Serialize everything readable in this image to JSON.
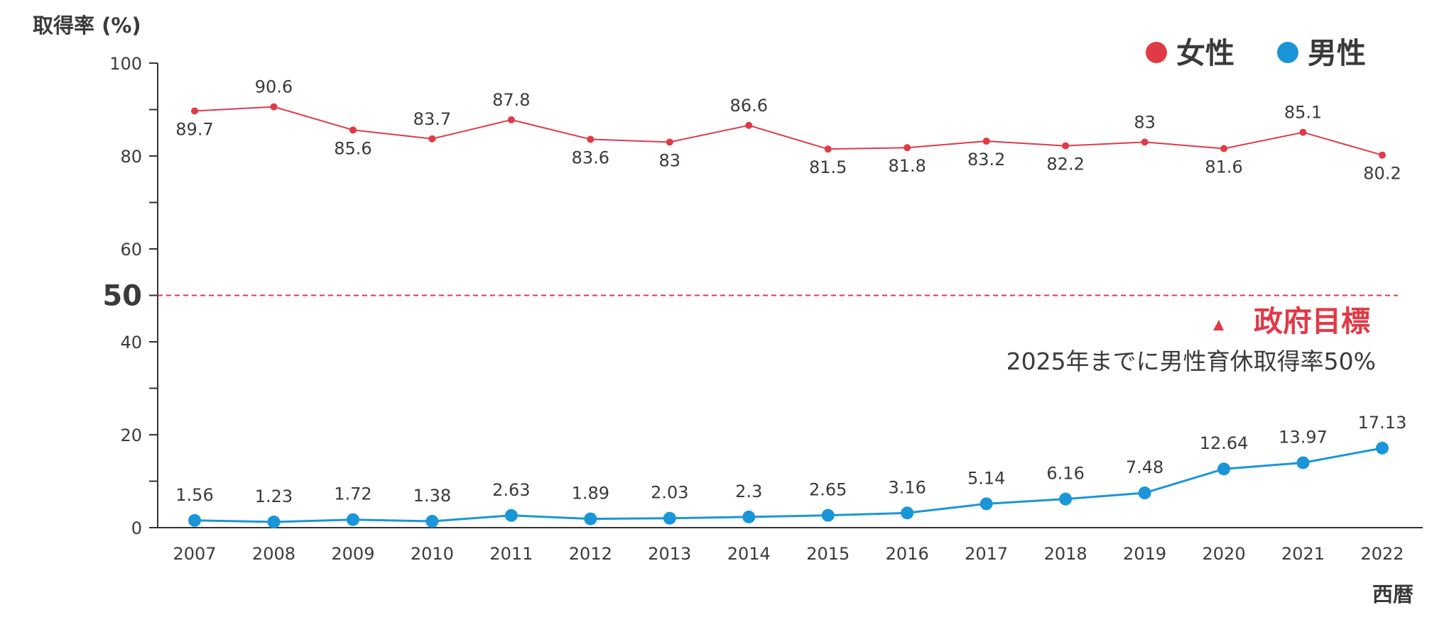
{
  "chart_data": {
    "type": "line",
    "ylabel": "取得率 (%)",
    "xlabel": "西暦",
    "ylim": [
      0,
      100
    ],
    "yticks": [
      0,
      20,
      40,
      60,
      80,
      100
    ],
    "minor_yticks": [
      10,
      30,
      50,
      70,
      90
    ],
    "grid": false,
    "legend_position": "top-right",
    "x": [
      "2007",
      "2008",
      "2009",
      "2010",
      "2011",
      "2012",
      "2013",
      "2014",
      "2015",
      "2016",
      "2017",
      "2018",
      "2019",
      "2020",
      "2021",
      "2022"
    ],
    "series": [
      {
        "name": "女性",
        "color": "#e03a47",
        "values": [
          89.7,
          90.6,
          85.6,
          83.7,
          87.8,
          83.6,
          83,
          86.6,
          81.5,
          81.8,
          83.2,
          82.2,
          83,
          81.6,
          85.1,
          80.2
        ],
        "labels": [
          "89.7",
          "90.6",
          "85.6",
          "83.7",
          "87.8",
          "83.6",
          "83",
          "86.6",
          "81.5",
          "81.8",
          "83.2",
          "82.2",
          "83",
          "81.6",
          "85.1",
          "80.2"
        ],
        "label_positions": [
          "below",
          "above",
          "below",
          "above",
          "above",
          "below",
          "below",
          "above",
          "below",
          "below",
          "below",
          "below",
          "above",
          "below",
          "above",
          "below"
        ]
      },
      {
        "name": "男性",
        "color": "#1a96d8",
        "values": [
          1.56,
          1.23,
          1.72,
          1.38,
          2.63,
          1.89,
          2.03,
          2.3,
          2.65,
          3.16,
          5.14,
          6.16,
          7.48,
          12.64,
          13.97,
          17.13
        ],
        "labels": [
          "1.56",
          "1.23",
          "1.72",
          "1.38",
          "2.63",
          "1.89",
          "2.03",
          "2.3",
          "2.65",
          "3.16",
          "5.14",
          "6.16",
          "7.48",
          "12.64",
          "13.97",
          "17.13"
        ]
      }
    ],
    "reference_line": {
      "value": 50,
      "label": "50",
      "color": "#e03a47",
      "style": "dashed"
    },
    "annotation": {
      "title": "政府目標",
      "text": "2025年までに男性育休取得率50%",
      "color": "#e03a47"
    }
  }
}
